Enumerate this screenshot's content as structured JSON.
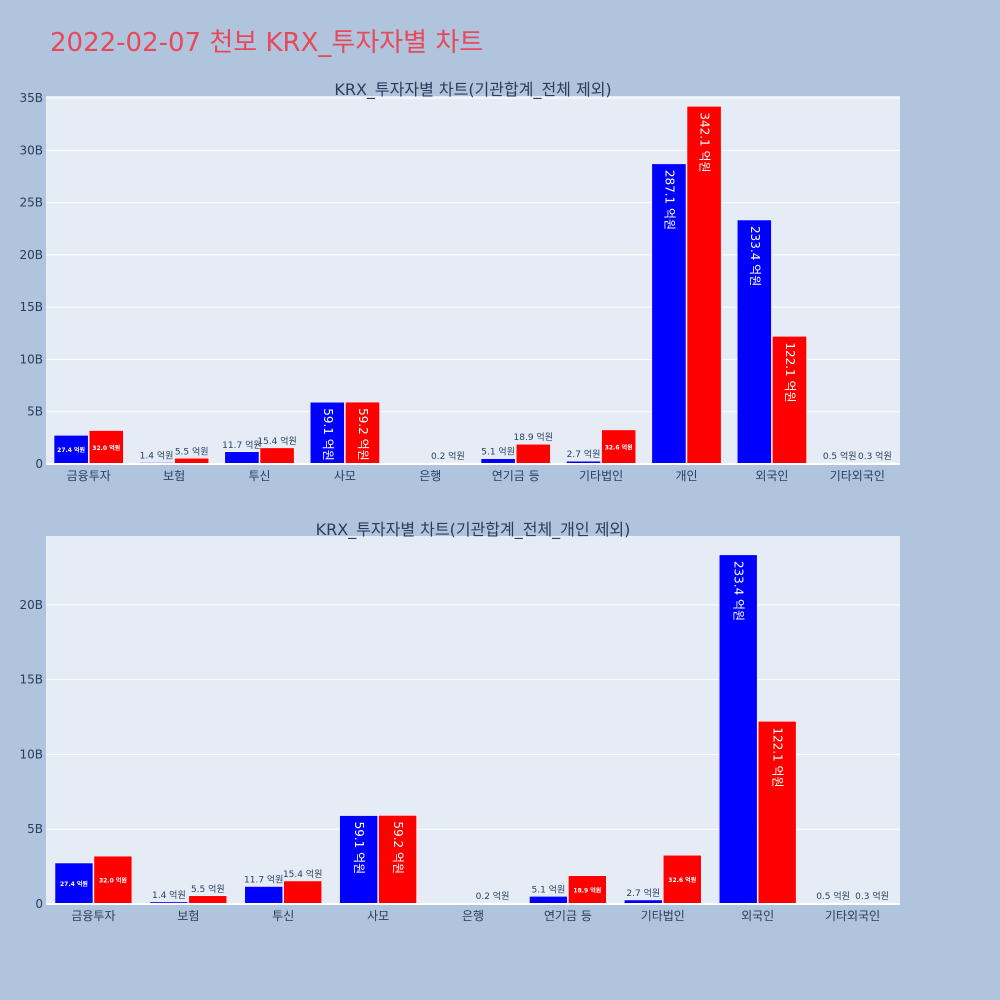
{
  "page_title": "2022-02-07 천보 KRX_투자자별 차트",
  "colors": {
    "buy": "#0000ff",
    "sell": "#ff0000",
    "plot_bg": "#e5ecf6",
    "paper_bg": "#b0c4de",
    "title": "#e8495a"
  },
  "chart_data": [
    {
      "type": "bar",
      "title": "KRX_투자자별 차트(기관합계_전체 제외)",
      "categories": [
        "금융투자",
        "보험",
        "투신",
        "사모",
        "은행",
        "연기금 등",
        "기타법인",
        "개인",
        "외국인",
        "기타외국인"
      ],
      "series": [
        {
          "values": [
            2.74,
            0.14,
            1.17,
            5.91,
            0.0,
            0.51,
            0.27,
            28.71,
            23.34,
            0.05
          ],
          "labels": [
            "27.4 억원",
            "1.4 억원",
            "11.7 억원",
            "59.1 억원",
            "",
            "5.1 억원",
            "2.7 억원",
            "287.1 억원",
            "233.4 억원",
            "0.5 억원"
          ]
        },
        {
          "values": [
            3.2,
            0.55,
            1.54,
            5.92,
            0.02,
            1.89,
            3.26,
            34.21,
            12.21,
            0.03
          ],
          "labels": [
            "32.0 억원",
            "5.5 억원",
            "15.4 억원",
            "59.2 억원",
            "0.2 억원",
            "18.9 억원",
            "32.6 억원",
            "342.1 억원",
            "122.1 억원",
            "0.3 억원"
          ]
        }
      ],
      "ylim": [
        0,
        35.2
      ],
      "yticks": [
        0,
        5,
        10,
        15,
        20,
        25,
        30,
        35
      ],
      "ytick_labels": [
        "0",
        "5B",
        "10B",
        "15B",
        "20B",
        "25B",
        "30B",
        "35B"
      ],
      "grid": true
    },
    {
      "type": "bar",
      "title": "KRX_투자자별 차트(기관합계_전체_개인 제외)",
      "categories": [
        "금융투자",
        "보험",
        "투신",
        "사모",
        "은행",
        "연기금 등",
        "기타법인",
        "외국인",
        "기타외국인"
      ],
      "series": [
        {
          "values": [
            2.74,
            0.14,
            1.17,
            5.91,
            0.0,
            0.51,
            0.27,
            23.34,
            0.05
          ],
          "labels": [
            "27.4 억원",
            "1.4 억원",
            "11.7 억원",
            "59.1 억원",
            "",
            "5.1 억원",
            "2.7 억원",
            "233.4 억원",
            "0.5 억원"
          ]
        },
        {
          "values": [
            3.2,
            0.55,
            1.54,
            5.92,
            0.02,
            1.89,
            3.26,
            12.21,
            0.03
          ],
          "labels": [
            "32.0 억원",
            "5.5 억원",
            "15.4 억원",
            "59.2 억원",
            "0.2 억원",
            "18.9 억원",
            "32.6 억원",
            "122.1 억원",
            "0.3 억원"
          ]
        }
      ],
      "ylim": [
        0,
        24.6
      ],
      "yticks": [
        0,
        5,
        10,
        15,
        20
      ],
      "ytick_labels": [
        "0",
        "5B",
        "10B",
        "15B",
        "20B"
      ],
      "grid": true
    }
  ]
}
